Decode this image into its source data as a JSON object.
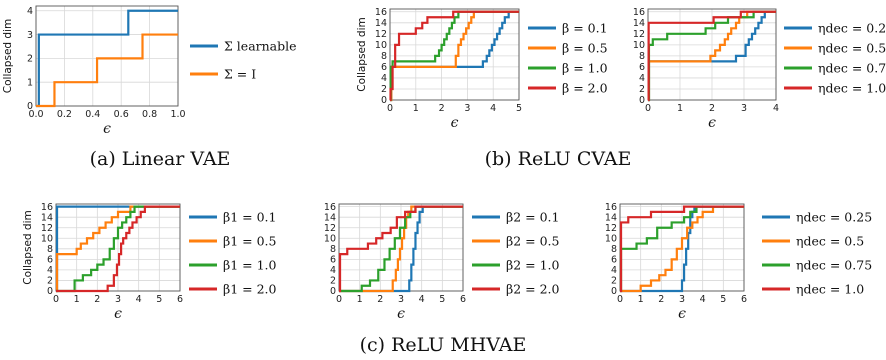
{
  "colors": {
    "blue": "#1f77b4",
    "orange": "#ff7f0e",
    "green": "#2ca02c",
    "red": "#d62728"
  },
  "captions": [
    {
      "id": "cap-a",
      "text": "(a) Linear VAE"
    },
    {
      "id": "cap-b",
      "text": "(b) ReLU CVAE"
    },
    {
      "id": "cap-c",
      "text": "(c) ReLU MHVAE"
    }
  ],
  "chart_data": [
    {
      "id": "linear-vae",
      "type": "line",
      "ylabel": "Collapsed dim",
      "xlabel": "ϵ",
      "xlim": [
        0,
        1
      ],
      "ylim": [
        0,
        4.2
      ],
      "xticks": [
        "0.0",
        "0.2",
        "0.4",
        "0.6",
        "0.8",
        "1.0"
      ],
      "yticks": [
        "0",
        "1",
        "2",
        "3",
        "4"
      ],
      "series": [
        {
          "name": "Σ learnable",
          "color": "blue",
          "x": [
            0,
            0.02,
            0.02,
            0.65,
            0.65,
            1.0
          ],
          "y": [
            0,
            0,
            3,
            3,
            4,
            4
          ]
        },
        {
          "name": "Σ = I",
          "color": "orange",
          "x": [
            0,
            0.13,
            0.13,
            0.43,
            0.43,
            0.75,
            0.75,
            1.0
          ],
          "y": [
            0,
            0,
            1,
            1,
            2,
            2,
            3,
            3
          ]
        }
      ]
    },
    {
      "id": "relu-cvae-beta",
      "type": "line",
      "ylabel": "Collapsed dim",
      "xlabel": "ϵ",
      "xlim": [
        0,
        5
      ],
      "ylim": [
        0,
        16.5
      ],
      "xticks": [
        "0",
        "1",
        "2",
        "3",
        "4",
        "5"
      ],
      "yticks": [
        "0",
        "2",
        "4",
        "6",
        "8",
        "10",
        "12",
        "14",
        "16"
      ],
      "series": [
        {
          "name": "β = 0.1",
          "color": "blue",
          "x": [
            0,
            0.05,
            0.05,
            3.6,
            3.6,
            3.75,
            3.75,
            3.85,
            3.85,
            3.95,
            3.95,
            4.05,
            4.05,
            4.15,
            4.15,
            4.25,
            4.25,
            4.35,
            4.35,
            4.45,
            4.45,
            4.6,
            4.6,
            5.0
          ],
          "y": [
            0,
            0,
            6,
            6,
            7,
            7,
            8,
            8,
            9,
            9,
            10,
            10,
            11,
            11,
            12,
            12,
            13,
            13,
            14,
            14,
            15,
            15,
            16,
            16
          ]
        },
        {
          "name": "β = 0.5",
          "color": "orange",
          "x": [
            0,
            0.05,
            0.05,
            2.55,
            2.55,
            2.65,
            2.65,
            2.75,
            2.75,
            2.85,
            2.85,
            2.95,
            2.95,
            3.05,
            3.05,
            3.15,
            3.15,
            3.25,
            3.25,
            3.35,
            3.35,
            5.0
          ],
          "y": [
            0,
            0,
            6,
            6,
            8,
            8,
            10,
            10,
            11,
            11,
            12,
            12,
            13,
            13,
            14,
            14,
            15,
            15,
            16,
            16,
            16,
            16
          ]
        },
        {
          "name": "β = 1.0",
          "color": "green",
          "x": [
            0,
            0.03,
            0.03,
            0.1,
            0.1,
            1.75,
            1.75,
            1.9,
            1.9,
            2.0,
            2.0,
            2.1,
            2.1,
            2.2,
            2.2,
            2.3,
            2.3,
            2.4,
            2.4,
            2.5,
            2.5,
            2.65,
            2.65,
            2.8,
            2.8,
            5.0
          ],
          "y": [
            0,
            0,
            6,
            6,
            7,
            7,
            8,
            8,
            9,
            9,
            10,
            10,
            11,
            11,
            12,
            12,
            13,
            13,
            14,
            14,
            15,
            15,
            16,
            16,
            16,
            16
          ]
        },
        {
          "name": "β = 2.0",
          "color": "red",
          "x": [
            0,
            0.02,
            0.02,
            0.1,
            0.1,
            0.2,
            0.2,
            0.35,
            0.35,
            1.0,
            1.0,
            1.25,
            1.25,
            1.45,
            1.45,
            2.0,
            2.0,
            2.45,
            2.45,
            2.7,
            2.7,
            5.0
          ],
          "y": [
            0,
            0,
            2,
            2,
            6,
            6,
            10,
            10,
            12,
            12,
            13,
            13,
            14,
            14,
            15,
            15,
            15,
            15,
            16,
            16,
            16,
            16
          ]
        }
      ]
    },
    {
      "id": "relu-cvae-eta",
      "type": "line",
      "ylabel": "",
      "xlabel": "ϵ",
      "xlim": [
        0,
        4
      ],
      "ylim": [
        0,
        16.5
      ],
      "xticks": [
        "0",
        "1",
        "2",
        "3",
        "4"
      ],
      "yticks": [
        "0",
        "2",
        "4",
        "6",
        "8",
        "10",
        "12",
        "14",
        "16"
      ],
      "series": [
        {
          "name": "ηdec = 0.25",
          "color": "blue",
          "x": [
            0,
            0.03,
            0.03,
            2.75,
            2.75,
            3.05,
            3.05,
            3.15,
            3.15,
            3.25,
            3.25,
            3.35,
            3.35,
            3.45,
            3.45,
            3.55,
            3.55,
            3.65,
            3.65,
            4.0
          ],
          "y": [
            0,
            0,
            7,
            7,
            8,
            8,
            10,
            10,
            11,
            11,
            12,
            12,
            13,
            13,
            14,
            14,
            15,
            15,
            16,
            16
          ]
        },
        {
          "name": "ηdec = 0.5",
          "color": "orange",
          "x": [
            0,
            0.03,
            0.03,
            1.95,
            1.95,
            2.1,
            2.1,
            2.25,
            2.25,
            2.4,
            2.4,
            2.5,
            2.5,
            2.6,
            2.6,
            2.75,
            2.75,
            2.85,
            2.85,
            3.0,
            3.0,
            3.1,
            3.1,
            3.55,
            3.55,
            4.0
          ],
          "y": [
            0,
            0,
            7,
            7,
            8,
            8,
            9,
            9,
            10,
            10,
            11,
            11,
            12,
            12,
            13,
            13,
            14,
            14,
            15,
            15,
            15,
            15,
            16,
            16,
            16,
            16
          ]
        },
        {
          "name": "ηdec = 0.75",
          "color": "green",
          "x": [
            0,
            0.03,
            0.03,
            0.15,
            0.15,
            0.6,
            0.6,
            1.8,
            1.8,
            2.1,
            2.1,
            2.5,
            2.5,
            3.3,
            3.3,
            4.0
          ],
          "y": [
            0,
            0,
            10,
            10,
            11,
            11,
            12,
            12,
            13,
            13,
            14,
            14,
            15,
            15,
            16,
            16
          ]
        },
        {
          "name": "ηdec = 1.0",
          "color": "red",
          "x": [
            0,
            0.02,
            0.02,
            2.05,
            2.05,
            2.9,
            2.9,
            4.0
          ],
          "y": [
            0,
            0,
            14,
            14,
            15,
            15,
            16,
            16
          ]
        }
      ]
    },
    {
      "id": "relu-mhvae-beta1",
      "type": "line",
      "ylabel": "Collapsed dim",
      "xlabel": "ϵ",
      "xlim": [
        0,
        6
      ],
      "ylim": [
        0,
        16.5
      ],
      "xticks": [
        "0",
        "1",
        "2",
        "3",
        "4",
        "5",
        "6"
      ],
      "yticks": [
        "0",
        "2",
        "4",
        "6",
        "8",
        "10",
        "12",
        "14",
        "16"
      ],
      "series": [
        {
          "name": "β1 = 0.1",
          "color": "blue",
          "x": [
            0,
            0.05,
            0.05,
            6.0
          ],
          "y": [
            0,
            0,
            16,
            16
          ]
        },
        {
          "name": "β1 = 0.5",
          "color": "orange",
          "x": [
            0,
            0.05,
            0.05,
            1.0,
            1.0,
            1.2,
            1.2,
            1.5,
            1.5,
            1.8,
            1.8,
            2.1,
            2.1,
            2.4,
            2.4,
            2.7,
            2.7,
            3.0,
            3.0,
            3.2,
            3.2,
            3.6,
            3.6,
            4.0,
            4.0,
            4.4,
            4.4,
            5.0,
            5.0,
            6.0
          ],
          "y": [
            0,
            0,
            7,
            7,
            8,
            8,
            9,
            9,
            10,
            10,
            11,
            11,
            12,
            12,
            13,
            13,
            14,
            14,
            15,
            15,
            15,
            15,
            16,
            16,
            16,
            16,
            16,
            16,
            16,
            16
          ]
        },
        {
          "name": "β1 = 1.0",
          "color": "green",
          "x": [
            0,
            0.9,
            0.9,
            1.3,
            1.3,
            1.7,
            1.7,
            2.0,
            2.0,
            2.3,
            2.3,
            2.6,
            2.6,
            2.8,
            2.8,
            3.0,
            3.0,
            3.2,
            3.2,
            3.4,
            3.4,
            3.6,
            3.6,
            3.8,
            3.8,
            4.2,
            4.2,
            6.0
          ],
          "y": [
            0,
            0,
            2,
            2,
            3,
            3,
            4,
            4,
            5,
            5,
            6,
            6,
            8,
            8,
            10,
            10,
            12,
            12,
            13,
            13,
            14,
            14,
            15,
            15,
            16,
            16,
            16,
            16
          ]
        },
        {
          "name": "β1 = 2.0",
          "color": "red",
          "x": [
            0,
            2.5,
            2.5,
            2.8,
            2.8,
            2.95,
            2.95,
            3.05,
            3.05,
            3.15,
            3.15,
            3.25,
            3.25,
            3.4,
            3.4,
            3.55,
            3.55,
            3.7,
            3.7,
            3.9,
            3.9,
            4.1,
            4.1,
            4.3,
            4.3,
            4.6,
            4.6,
            6.0
          ],
          "y": [
            0,
            0,
            1,
            1,
            3,
            3,
            5,
            5,
            7,
            7,
            9,
            9,
            10,
            10,
            11,
            11,
            12,
            12,
            13,
            13,
            14,
            14,
            15,
            15,
            16,
            16,
            16,
            16
          ]
        }
      ]
    },
    {
      "id": "relu-mhvae-beta2",
      "type": "line",
      "ylabel": "",
      "xlabel": "ϵ",
      "xlim": [
        0,
        6
      ],
      "ylim": [
        0,
        16.5
      ],
      "xticks": [
        "0",
        "1",
        "2",
        "3",
        "4",
        "5",
        "6"
      ],
      "yticks": [
        "0",
        "2",
        "4",
        "6",
        "8",
        "10",
        "12",
        "14",
        "16"
      ],
      "series": [
        {
          "name": "β2 = 0.1",
          "color": "blue",
          "x": [
            0,
            3.4,
            3.4,
            3.5,
            3.5,
            3.6,
            3.6,
            3.7,
            3.7,
            3.8,
            3.8,
            3.9,
            3.9,
            4.05,
            4.05,
            6.0
          ],
          "y": [
            0,
            0,
            2,
            2,
            5,
            5,
            8,
            8,
            11,
            11,
            13,
            13,
            15,
            15,
            16,
            16
          ]
        },
        {
          "name": "β2 = 0.5",
          "color": "orange",
          "x": [
            0,
            2.6,
            2.6,
            2.75,
            2.75,
            2.85,
            2.85,
            2.95,
            2.95,
            3.05,
            3.05,
            3.15,
            3.15,
            3.25,
            3.25,
            3.35,
            3.35,
            3.5,
            3.5,
            3.65,
            3.65,
            6.0
          ],
          "y": [
            0,
            0,
            2,
            2,
            4,
            4,
            6,
            6,
            8,
            8,
            10,
            10,
            12,
            12,
            14,
            14,
            15,
            15,
            16,
            16,
            16,
            16
          ]
        },
        {
          "name": "β2 = 1.0",
          "color": "green",
          "x": [
            0,
            1.1,
            1.1,
            1.5,
            1.5,
            1.9,
            1.9,
            2.2,
            2.2,
            2.45,
            2.45,
            2.7,
            2.7,
            2.95,
            2.95,
            3.2,
            3.2,
            3.45,
            3.45,
            3.7,
            3.7,
            6.0
          ],
          "y": [
            0,
            0,
            1,
            1,
            2,
            2,
            4,
            4,
            6,
            6,
            8,
            8,
            10,
            10,
            12,
            12,
            14,
            14,
            15,
            15,
            16,
            16
          ]
        },
        {
          "name": "β2 = 2.0",
          "color": "red",
          "x": [
            0,
            0.05,
            0.05,
            0.4,
            0.4,
            1.4,
            1.4,
            1.8,
            1.8,
            2.1,
            2.1,
            2.5,
            2.5,
            2.8,
            2.8,
            3.2,
            3.2,
            3.7,
            3.7,
            6.0
          ],
          "y": [
            0,
            0,
            7,
            7,
            8,
            8,
            9,
            9,
            10,
            10,
            11,
            11,
            12,
            12,
            14,
            14,
            15,
            15,
            16,
            16
          ]
        }
      ]
    },
    {
      "id": "relu-mhvae-eta",
      "type": "line",
      "ylabel": "",
      "xlabel": "ϵ",
      "xlim": [
        0,
        6
      ],
      "ylim": [
        0,
        16.5
      ],
      "xticks": [
        "0",
        "1",
        "2",
        "3",
        "4",
        "5",
        "6"
      ],
      "yticks": [
        "0",
        "2",
        "4",
        "6",
        "8",
        "10",
        "12",
        "14",
        "16"
      ],
      "series": [
        {
          "name": "ηdec = 0.25",
          "color": "blue",
          "x": [
            0,
            3.0,
            3.0,
            3.1,
            3.1,
            3.2,
            3.2,
            3.3,
            3.3,
            3.4,
            3.4,
            3.5,
            3.5,
            3.6,
            3.6,
            6.0
          ],
          "y": [
            0,
            0,
            2,
            2,
            5,
            5,
            8,
            8,
            11,
            11,
            14,
            14,
            15,
            15,
            16,
            16
          ]
        },
        {
          "name": "ηdec = 0.5",
          "color": "orange",
          "x": [
            0,
            1.0,
            1.0,
            1.5,
            1.5,
            1.9,
            1.9,
            2.2,
            2.2,
            2.5,
            2.5,
            2.75,
            2.75,
            3.0,
            3.0,
            3.25,
            3.25,
            3.5,
            3.5,
            3.75,
            3.75,
            4.0,
            4.0,
            4.5,
            4.5,
            6.0
          ],
          "y": [
            0,
            0,
            1,
            1,
            2,
            2,
            3,
            3,
            4,
            4,
            6,
            6,
            8,
            8,
            10,
            10,
            12,
            12,
            13,
            13,
            14,
            14,
            15,
            15,
            16,
            16
          ]
        },
        {
          "name": "ηdec = 0.75",
          "color": "green",
          "x": [
            0,
            0.05,
            0.05,
            0.8,
            0.8,
            1.3,
            1.3,
            1.8,
            1.8,
            2.5,
            2.5,
            3.1,
            3.1,
            3.4,
            3.4,
            3.7,
            3.7,
            6.0
          ],
          "y": [
            0,
            0,
            8,
            8,
            9,
            9,
            10,
            10,
            12,
            12,
            13,
            13,
            14,
            14,
            15,
            15,
            16,
            16
          ]
        },
        {
          "name": "ηdec = 1.0",
          "color": "red",
          "x": [
            0,
            0.05,
            0.05,
            0.4,
            0.4,
            1.5,
            1.5,
            3.1,
            3.1,
            6.0
          ],
          "y": [
            0,
            0,
            13,
            13,
            14,
            14,
            15,
            15,
            16,
            16
          ]
        }
      ]
    }
  ]
}
